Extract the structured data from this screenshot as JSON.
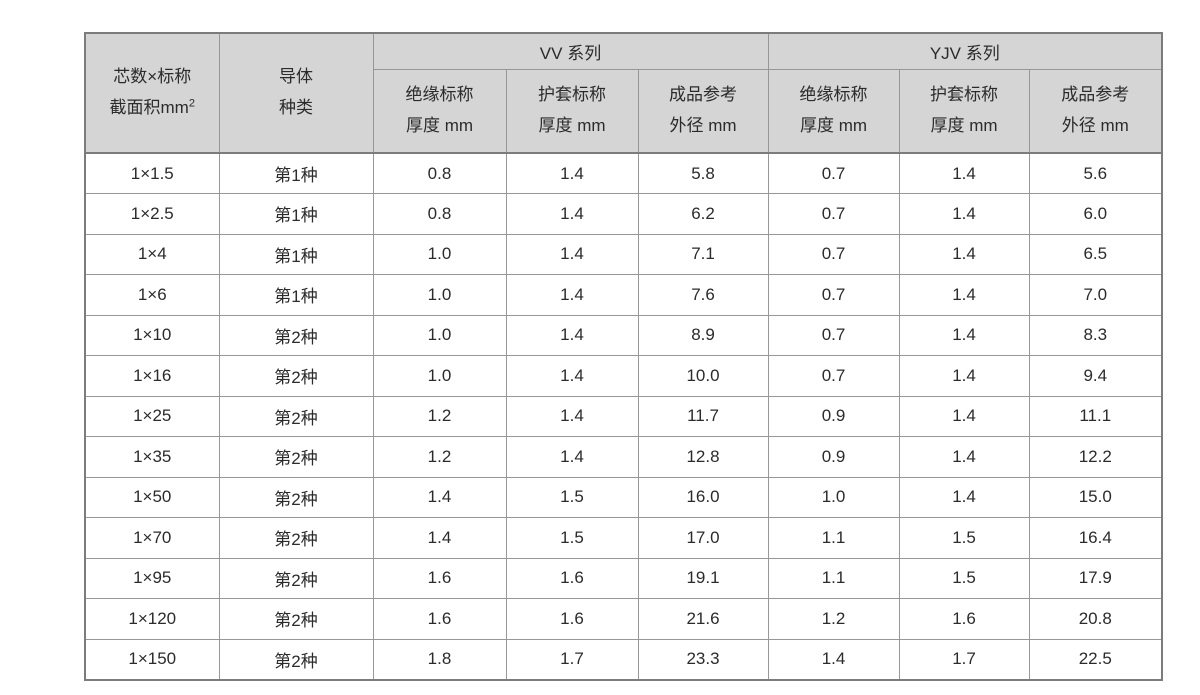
{
  "page": {
    "background_color": "#ffffff",
    "header_bg_color": "#d5d5d5",
    "border_color": "#7c7c7c",
    "text_color": "#2b2b2b"
  },
  "table": {
    "header": {
      "spec_line1": "芯数×标称",
      "spec_line2_base": "截面积mm",
      "spec_line2_sup": "2",
      "conductor_line1": "导体",
      "conductor_line2": "种类",
      "vv_group": "VV 系列",
      "yjv_group": "YJV 系列",
      "sub": {
        "insulation_line1": "绝缘标称",
        "insulation_line2": "厚度 mm",
        "sheath_line1": "护套标称",
        "sheath_line2": "厚度 mm",
        "od_line1": "成品参考",
        "od_line2": "外径 mm"
      }
    },
    "rows": [
      {
        "spec": "1×1.5",
        "conductor": "第1种",
        "vv_insulation": "0.8",
        "vv_sheath": "1.4",
        "vv_od": "5.8",
        "yjv_insulation": "0.7",
        "yjv_sheath": "1.4",
        "yjv_od": "5.6"
      },
      {
        "spec": "1×2.5",
        "conductor": "第1种",
        "vv_insulation": "0.8",
        "vv_sheath": "1.4",
        "vv_od": "6.2",
        "yjv_insulation": "0.7",
        "yjv_sheath": "1.4",
        "yjv_od": "6.0"
      },
      {
        "spec": "1×4",
        "conductor": "第1种",
        "vv_insulation": "1.0",
        "vv_sheath": "1.4",
        "vv_od": "7.1",
        "yjv_insulation": "0.7",
        "yjv_sheath": "1.4",
        "yjv_od": "6.5"
      },
      {
        "spec": "1×6",
        "conductor": "第1种",
        "vv_insulation": "1.0",
        "vv_sheath": "1.4",
        "vv_od": "7.6",
        "yjv_insulation": "0.7",
        "yjv_sheath": "1.4",
        "yjv_od": "7.0"
      },
      {
        "spec": "1×10",
        "conductor": "第2种",
        "vv_insulation": "1.0",
        "vv_sheath": "1.4",
        "vv_od": "8.9",
        "yjv_insulation": "0.7",
        "yjv_sheath": "1.4",
        "yjv_od": "8.3"
      },
      {
        "spec": "1×16",
        "conductor": "第2种",
        "vv_insulation": "1.0",
        "vv_sheath": "1.4",
        "vv_od": "10.0",
        "yjv_insulation": "0.7",
        "yjv_sheath": "1.4",
        "yjv_od": "9.4"
      },
      {
        "spec": "1×25",
        "conductor": "第2种",
        "vv_insulation": "1.2",
        "vv_sheath": "1.4",
        "vv_od": "11.7",
        "yjv_insulation": "0.9",
        "yjv_sheath": "1.4",
        "yjv_od": "11.1"
      },
      {
        "spec": "1×35",
        "conductor": "第2种",
        "vv_insulation": "1.2",
        "vv_sheath": "1.4",
        "vv_od": "12.8",
        "yjv_insulation": "0.9",
        "yjv_sheath": "1.4",
        "yjv_od": "12.2"
      },
      {
        "spec": "1×50",
        "conductor": "第2种",
        "vv_insulation": "1.4",
        "vv_sheath": "1.5",
        "vv_od": "16.0",
        "yjv_insulation": "1.0",
        "yjv_sheath": "1.4",
        "yjv_od": "15.0"
      },
      {
        "spec": "1×70",
        "conductor": "第2种",
        "vv_insulation": "1.4",
        "vv_sheath": "1.5",
        "vv_od": "17.0",
        "yjv_insulation": "1.1",
        "yjv_sheath": "1.5",
        "yjv_od": "16.4"
      },
      {
        "spec": "1×95",
        "conductor": "第2种",
        "vv_insulation": "1.6",
        "vv_sheath": "1.6",
        "vv_od": "19.1",
        "yjv_insulation": "1.1",
        "yjv_sheath": "1.5",
        "yjv_od": "17.9"
      },
      {
        "spec": "1×120",
        "conductor": "第2种",
        "vv_insulation": "1.6",
        "vv_sheath": "1.6",
        "vv_od": "21.6",
        "yjv_insulation": "1.2",
        "yjv_sheath": "1.6",
        "yjv_od": "20.8"
      },
      {
        "spec": "1×150",
        "conductor": "第2种",
        "vv_insulation": "1.8",
        "vv_sheath": "1.7",
        "vv_od": "23.3",
        "yjv_insulation": "1.4",
        "yjv_sheath": "1.7",
        "yjv_od": "22.5"
      }
    ]
  }
}
